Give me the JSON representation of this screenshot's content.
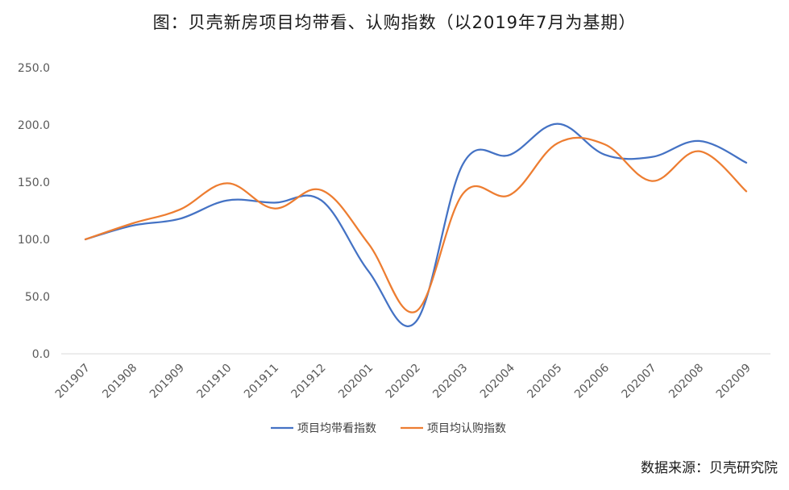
{
  "chart_data": {
    "type": "line",
    "title": "图：贝壳新房项目均带看、认购指数（以2019年7月为基期）",
    "categories": [
      "201907",
      "201908",
      "201909",
      "201910",
      "201911",
      "201912",
      "202001",
      "202002",
      "202003",
      "202004",
      "202005",
      "202006",
      "202007",
      "202008",
      "202009"
    ],
    "series": [
      {
        "name": "项目均带看指数",
        "color": "#4472C4",
        "values": [
          100,
          112,
          118,
          134,
          132,
          134,
          72,
          28,
          166,
          174,
          201,
          174,
          172,
          186,
          167
        ]
      },
      {
        "name": "项目均认购指数",
        "color": "#ED7D31",
        "values": [
          100,
          114,
          126,
          149,
          127,
          143,
          96,
          37,
          140,
          139,
          184,
          183,
          151,
          177,
          142
        ]
      }
    ],
    "yticks": [
      "0.0",
      "50.0",
      "100.0",
      "150.0",
      "200.0",
      "250.0"
    ],
    "ylim": [
      0,
      250
    ],
    "grid": false,
    "legend": "bottom",
    "xlabel": "",
    "ylabel": ""
  },
  "source_text": "数据来源：贝壳研究院"
}
